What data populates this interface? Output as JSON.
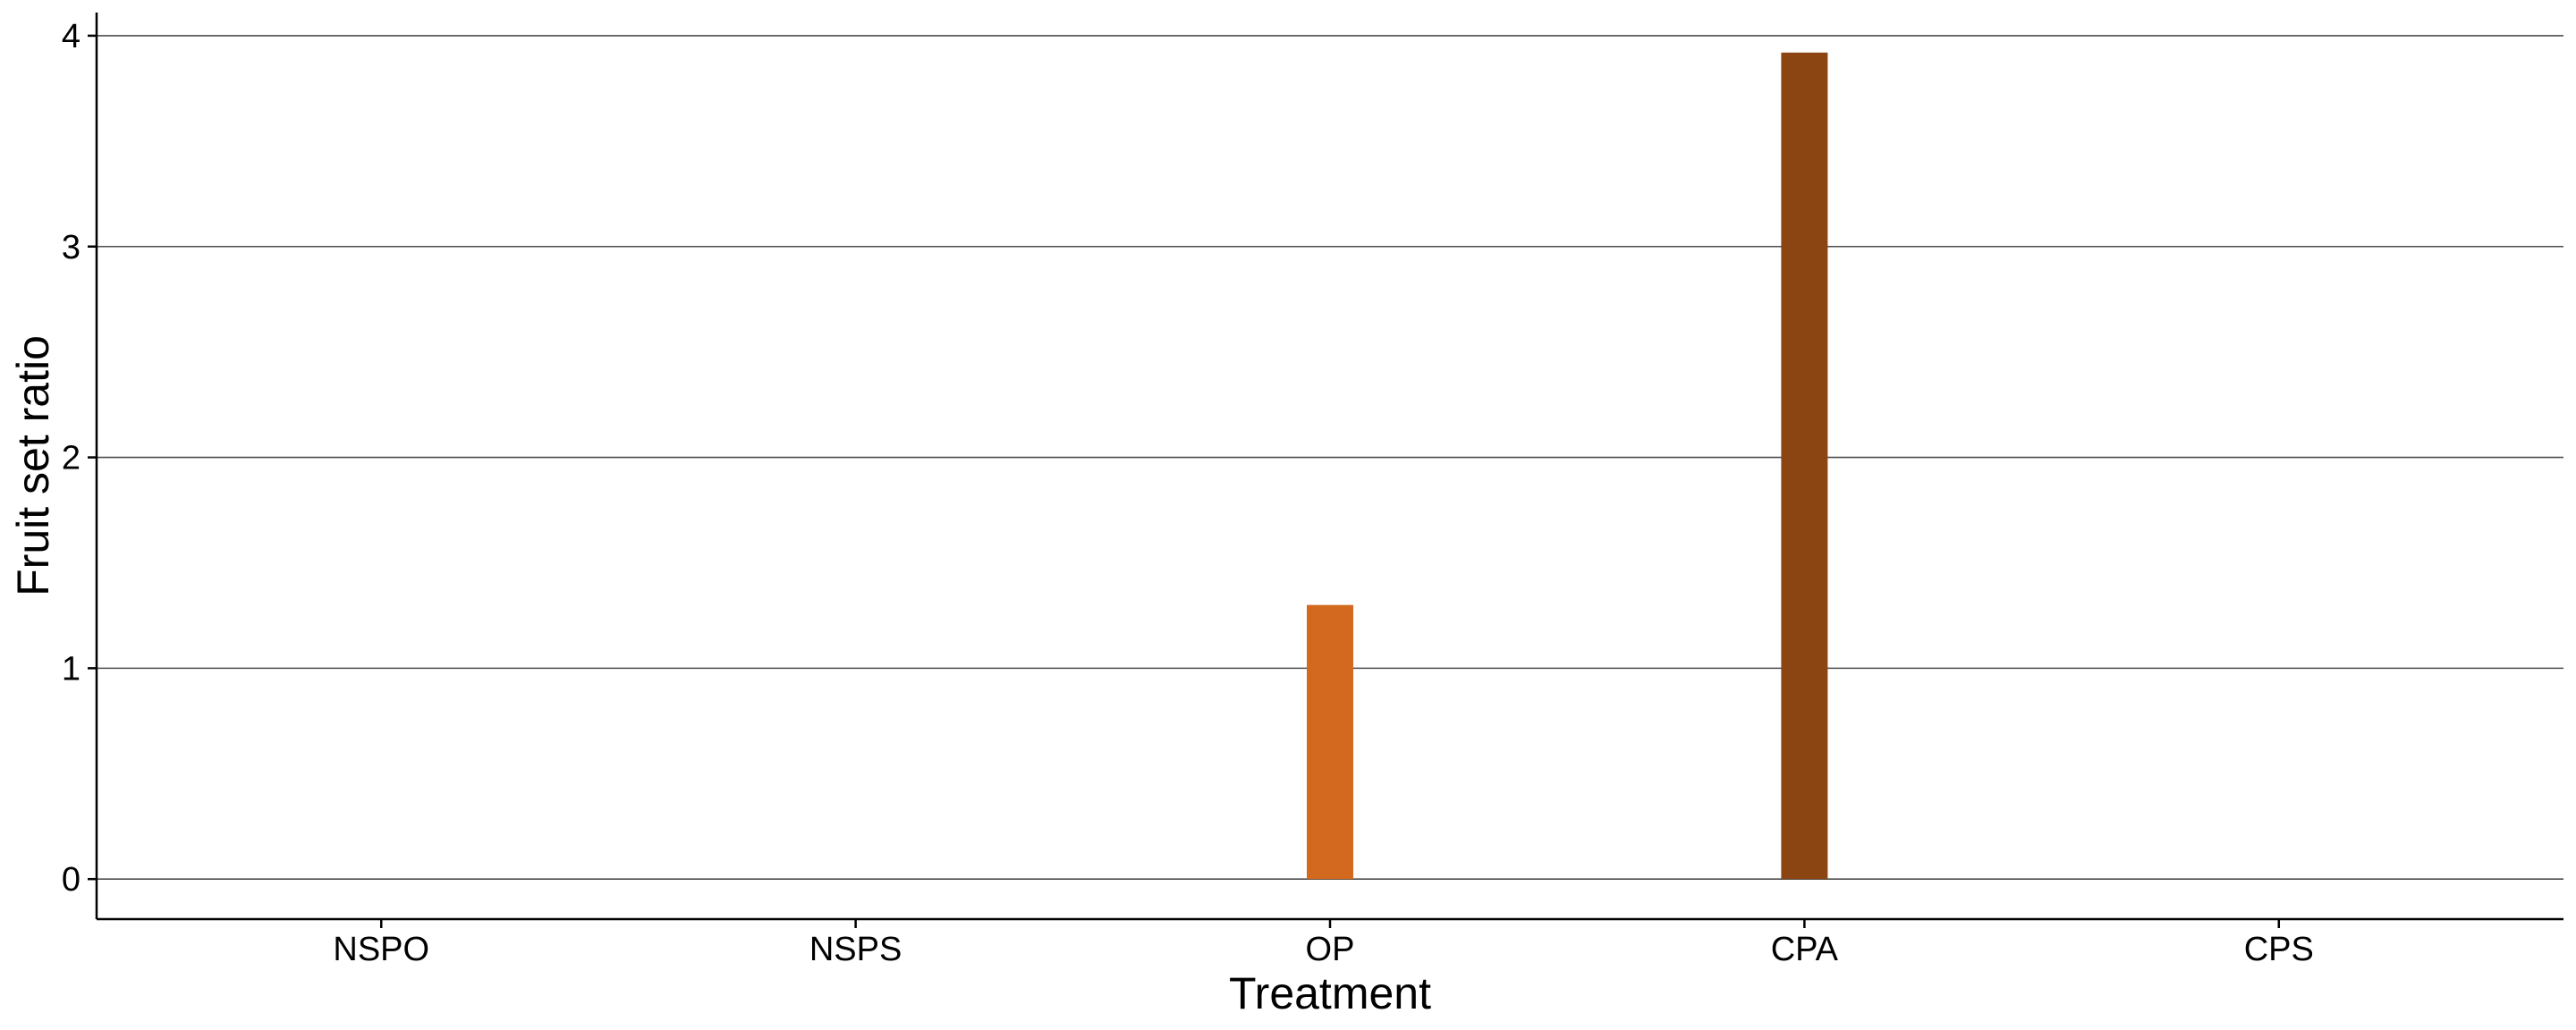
{
  "chart_data": {
    "type": "bar",
    "title": "",
    "xlabel": "Treatment",
    "ylabel": "Fruit set ratio",
    "categories": [
      "NSPO",
      "NSPS",
      "OP",
      "CPA",
      "CPS"
    ],
    "values": [
      0,
      0,
      1.3,
      3.92,
      0
    ],
    "bar_colors": [
      "#D2691E",
      "#D2691E",
      "#D2691E",
      "#8B4513",
      "#8B4513"
    ],
    "ylim": [
      -0.19,
      4.11
    ],
    "yticks": [
      0,
      1,
      2,
      3,
      4
    ],
    "ytick_labels": [
      "0",
      "1",
      "2",
      "3",
      "4"
    ],
    "grid": "horizontal",
    "legend": "none"
  }
}
